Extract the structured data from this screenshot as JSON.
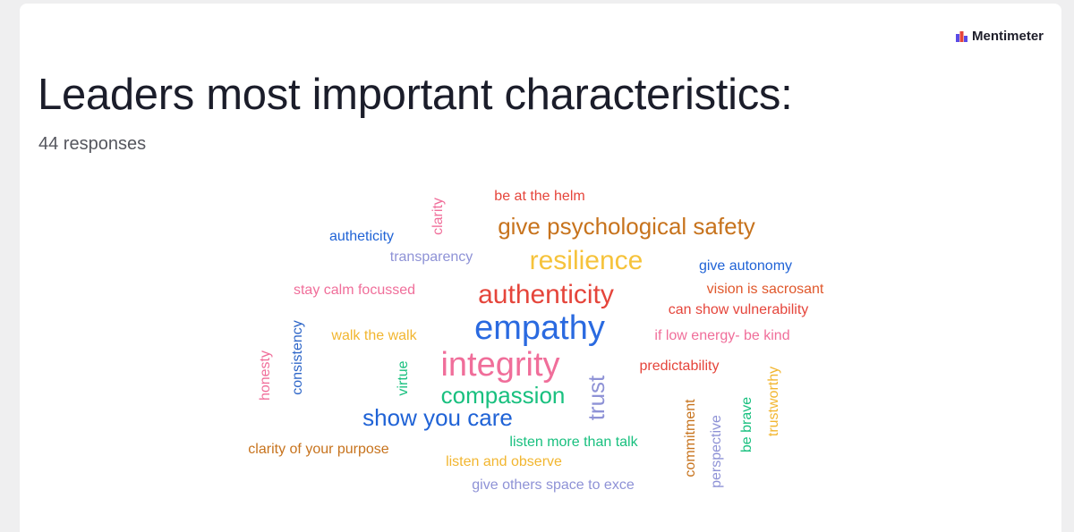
{
  "header": {
    "brand": "Mentimeter",
    "title": "Leaders most important characteristics:",
    "subtitle": "44 responses"
  },
  "words": [
    "clarity",
    "be at the helm",
    "give psychological safety",
    "autheticity",
    "transparency",
    "resilience",
    "give autonomy",
    "stay calm focussed",
    "authenticity",
    "vision is sacrosant",
    "can show vulnerability",
    "consistency",
    "walk the walk",
    "empathy",
    "if low energy- be kind",
    "honesty",
    "virtue",
    "integrity",
    "trust",
    "predictability",
    "trustworthy",
    "compassion",
    "show you care",
    "commitment",
    "perspective",
    "be brave",
    "clarity of your purpose",
    "listen more than talk",
    "listen and observe",
    "give others space to exce"
  ]
}
